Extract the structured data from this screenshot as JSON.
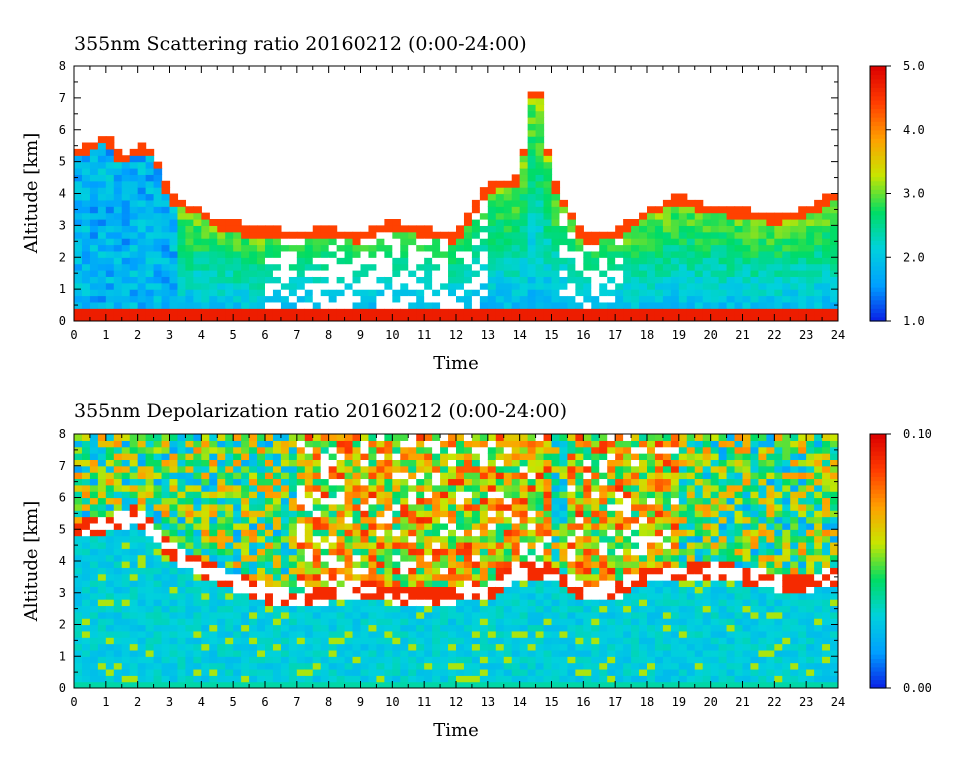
{
  "chart_data": [
    {
      "type": "heatmap",
      "title": "355nm Scattering ratio  20160212 (0:00-24:00)",
      "xlabel": "Time",
      "ylabel": "Altitude [km]",
      "xlim": [
        0,
        24
      ],
      "ylim": [
        0,
        8
      ],
      "x_ticks": [
        "0",
        "1",
        "2",
        "3",
        "4",
        "5",
        "6",
        "7",
        "8",
        "9",
        "10",
        "11",
        "12",
        "13",
        "14",
        "15",
        "16",
        "17",
        "18",
        "19",
        "20",
        "21",
        "22",
        "23",
        "24"
      ],
      "y_ticks": [
        "0",
        "1",
        "2",
        "3",
        "4",
        "5",
        "6",
        "7",
        "8"
      ],
      "colorbar": {
        "range": [
          1.0,
          5.0
        ],
        "tick_values": [
          1.0,
          2.0,
          3.0,
          4.0,
          5.0
        ],
        "tick_labels": [
          "1.0",
          "2.0",
          "3.0",
          "4.0",
          "5.0"
        ],
        "colors": [
          "#0a1ee6",
          "#00a0ff",
          "#00d2dc",
          "#00dc64",
          "#c8e600",
          "#ffa000",
          "#ff3c00",
          "#dc0000"
        ],
        "over_color": "#ffffff"
      },
      "cloud_top_profile_km": [
        {
          "t": 0.0,
          "top": 5.2
        },
        {
          "t": 0.5,
          "top": 5.4
        },
        {
          "t": 1.0,
          "top": 5.8
        },
        {
          "t": 1.5,
          "top": 5.0
        },
        {
          "t": 2.0,
          "top": 5.4
        },
        {
          "t": 2.5,
          "top": 5.3
        },
        {
          "t": 3.0,
          "top": 3.8
        },
        {
          "t": 3.5,
          "top": 3.6
        },
        {
          "t": 4.0,
          "top": 3.4
        },
        {
          "t": 4.5,
          "top": 3.0
        },
        {
          "t": 5.0,
          "top": 3.0
        },
        {
          "t": 5.5,
          "top": 2.8
        },
        {
          "t": 6.0,
          "top": 2.8
        },
        {
          "t": 7.0,
          "top": 2.7
        },
        {
          "t": 8.0,
          "top": 2.8
        },
        {
          "t": 9.0,
          "top": 2.6
        },
        {
          "t": 10.0,
          "top": 3.0
        },
        {
          "t": 11.0,
          "top": 2.8
        },
        {
          "t": 12.0,
          "top": 2.6
        },
        {
          "t": 13.0,
          "top": 4.2
        },
        {
          "t": 14.0,
          "top": 4.4
        },
        {
          "t": 14.5,
          "top": 8.0
        },
        {
          "t": 15.0,
          "top": 4.4
        },
        {
          "t": 16.0,
          "top": 2.6
        },
        {
          "t": 17.0,
          "top": 2.7
        },
        {
          "t": 18.0,
          "top": 3.4
        },
        {
          "t": 19.0,
          "top": 3.8
        },
        {
          "t": 20.0,
          "top": 3.5
        },
        {
          "t": 21.0,
          "top": 3.4
        },
        {
          "t": 22.0,
          "top": 3.2
        },
        {
          "t": 23.0,
          "top": 3.4
        },
        {
          "t": 24.0,
          "top": 4.0
        }
      ]
    },
    {
      "type": "heatmap",
      "title": "355nm Depolarization ratio  20160212 (0:00-24:00)",
      "xlabel": "Time",
      "ylabel": "Altitude [km]",
      "xlim": [
        0,
        24
      ],
      "ylim": [
        0,
        8
      ],
      "x_ticks": [
        "0",
        "1",
        "2",
        "3",
        "4",
        "5",
        "6",
        "7",
        "8",
        "9",
        "10",
        "11",
        "12",
        "13",
        "14",
        "15",
        "16",
        "17",
        "18",
        "19",
        "20",
        "21",
        "22",
        "23",
        "24"
      ],
      "y_ticks": [
        "0",
        "1",
        "2",
        "3",
        "4",
        "5",
        "6",
        "7",
        "8"
      ],
      "colorbar": {
        "range": [
          0.0,
          0.1
        ],
        "tick_values": [
          0.0,
          0.1
        ],
        "tick_labels": [
          "0.00",
          "0.10"
        ],
        "colors": [
          "#0a1ee6",
          "#00a0ff",
          "#00d2dc",
          "#00dc64",
          "#c8e600",
          "#ffa000",
          "#ff3c00",
          "#dc0000"
        ],
        "over_color": "#ffffff"
      },
      "boundary_layer_top_km": [
        {
          "t": 0.0,
          "top": 5.0
        },
        {
          "t": 1.0,
          "top": 5.2
        },
        {
          "t": 2.0,
          "top": 5.5
        },
        {
          "t": 3.0,
          "top": 4.4
        },
        {
          "t": 4.0,
          "top": 3.8
        },
        {
          "t": 5.0,
          "top": 3.4
        },
        {
          "t": 6.0,
          "top": 3.0
        },
        {
          "t": 7.0,
          "top": 2.8
        },
        {
          "t": 8.0,
          "top": 3.0
        },
        {
          "t": 9.0,
          "top": 3.1
        },
        {
          "t": 10.0,
          "top": 3.0
        },
        {
          "t": 11.0,
          "top": 2.9
        },
        {
          "t": 12.0,
          "top": 3.0
        },
        {
          "t": 13.0,
          "top": 3.0
        },
        {
          "t": 14.0,
          "top": 3.8
        },
        {
          "t": 15.0,
          "top": 3.7
        },
        {
          "t": 16.0,
          "top": 3.0
        },
        {
          "t": 17.0,
          "top": 3.1
        },
        {
          "t": 18.0,
          "top": 3.6
        },
        {
          "t": 19.0,
          "top": 3.6
        },
        {
          "t": 20.0,
          "top": 3.8
        },
        {
          "t": 21.0,
          "top": 3.6
        },
        {
          "t": 22.0,
          "top": 3.4
        },
        {
          "t": 23.0,
          "top": 3.3
        },
        {
          "t": 24.0,
          "top": 3.6
        }
      ]
    }
  ]
}
